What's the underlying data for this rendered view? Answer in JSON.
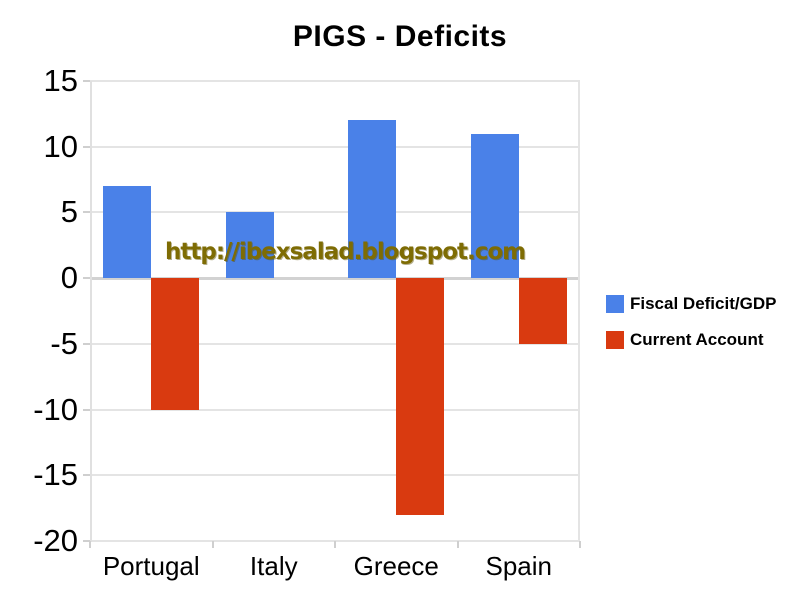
{
  "page": {
    "background": "#ffffff"
  },
  "chart_data": {
    "type": "bar",
    "title": "PIGS - Deficits",
    "categories": [
      "Portugal",
      "Italy",
      "Greece",
      "Spain"
    ],
    "series": [
      {
        "name": "Fiscal Deficit/GDP",
        "color": "#4a81e8",
        "values": [
          7,
          5,
          12,
          11
        ]
      },
      {
        "name": "Current Account",
        "color": "#d93a10",
        "values": [
          -10,
          0,
          -18,
          -5
        ]
      }
    ],
    "ylim": [
      -20,
      15
    ],
    "yticks": [
      15,
      10,
      5,
      0,
      -5,
      -10,
      -15,
      -20
    ],
    "ytick_step": 5,
    "grid": true,
    "legend_position": "right",
    "watermark": {
      "text": "http://ibexsalad.blogspot.com",
      "color": "#7e6c04"
    },
    "colors": {
      "gridline": "#e4e4e4",
      "zero_line": "#d2d2d2",
      "axis_line": "#e0e0e0",
      "tick": "#cfcfcf",
      "text": "#000000",
      "background": "#ffffff"
    }
  }
}
